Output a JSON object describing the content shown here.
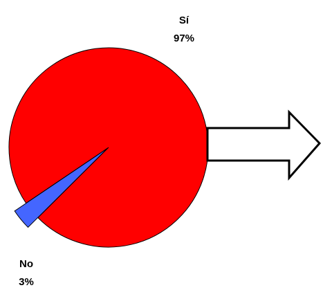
{
  "chart_data": {
    "type": "pie",
    "categories": [
      "Sí",
      "No"
    ],
    "values": [
      97,
      3
    ],
    "data_labels": [
      {
        "name": "Sí",
        "value": "97%"
      },
      {
        "name": "No",
        "value": "3%"
      }
    ],
    "colors": [
      "#ff0000",
      "#4466ff"
    ],
    "exploded": [
      "No"
    ],
    "legend": "none"
  },
  "decoration": {
    "arrow_icon": "right-arrow-outline-icon"
  }
}
